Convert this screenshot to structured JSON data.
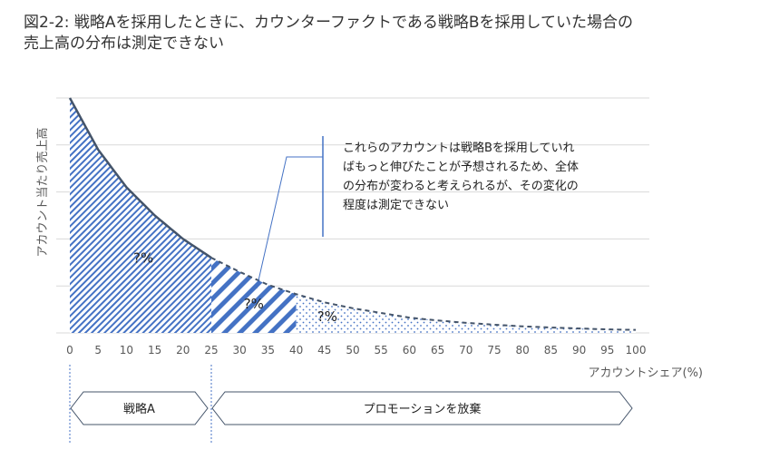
{
  "title": "図2-2: 戦略Aを採用したときに、カウンターファクトである戦略Bを採用していた場合の売上高の分布は測定できない",
  "chart_data": {
    "type": "area",
    "xlabel": "アカウントシェア(%)",
    "ylabel": "アカウント当たり売上高",
    "xlim": [
      0,
      100
    ],
    "ylim": [
      0,
      100
    ],
    "x_ticks": [
      "0",
      "5",
      "10",
      "15",
      "20",
      "25",
      "30",
      "35",
      "40",
      "45",
      "50",
      "55",
      "60",
      "65",
      "70",
      "75",
      "80",
      "85",
      "90",
      "95",
      "100"
    ],
    "y_tick_labels_shown": false,
    "grid": true,
    "curve": {
      "x": [
        0,
        5,
        10,
        15,
        20,
        25,
        30,
        35,
        40,
        45,
        50,
        55,
        60,
        65,
        70,
        75,
        80,
        85,
        90,
        95,
        100
      ],
      "y": [
        100,
        78,
        62,
        50,
        40,
        32,
        26,
        20.5,
        16.5,
        13,
        10.5,
        8.5,
        6.5,
        5.3,
        4.3,
        3.5,
        2.8,
        2.3,
        1.9,
        1.5,
        1.3
      ],
      "solid_until": 25,
      "dashed_from": 25
    },
    "regions": [
      {
        "from": 0,
        "to": 25,
        "pattern": "diagonal-fine",
        "label": "?%"
      },
      {
        "from": 25,
        "to": 40,
        "pattern": "diagonal-wide",
        "label": "?%"
      },
      {
        "from": 40,
        "to": 100,
        "pattern": "dots",
        "label": "?%"
      }
    ],
    "annotation": "これらのアカウントは戦略Bを採用していればもっと伸びたことが予想されるため、全体の分布が変わると考えられるが、その変化の程度は測定できない",
    "phases": [
      {
        "label": "戦略A",
        "from": 0,
        "to": 25
      },
      {
        "label": "プロモーションを放棄",
        "from": 25,
        "to": 100
      }
    ]
  },
  "colors": {
    "fill": "#4472C4",
    "curve": "#44546A",
    "grid": "#D9D9D9",
    "text": "#595959"
  }
}
